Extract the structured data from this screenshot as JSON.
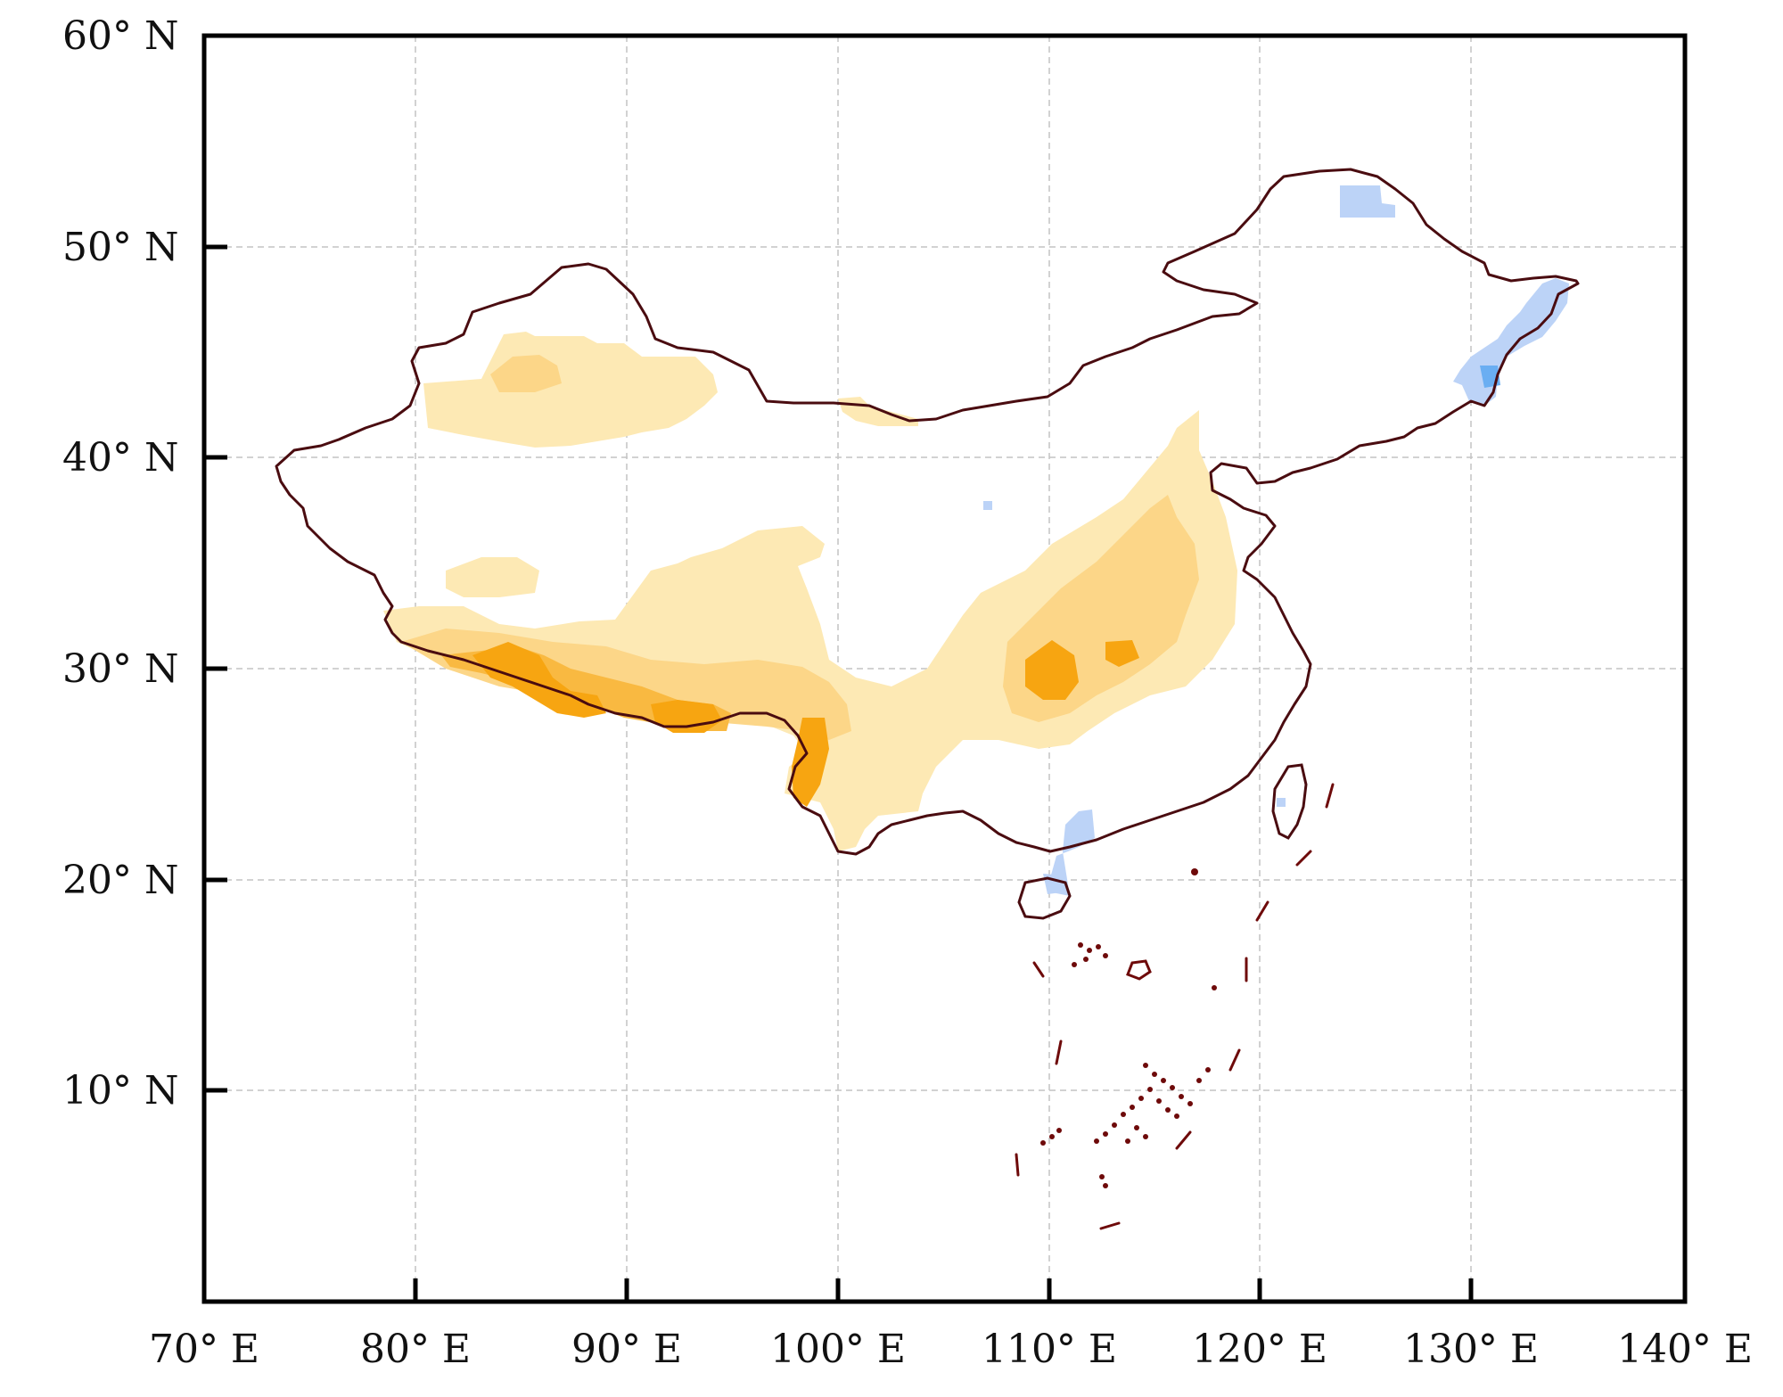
{
  "map": {
    "lat_range": [
      0,
      60
    ],
    "lon_range": [
      70,
      140
    ],
    "grid": true,
    "lat_ticks": [
      {
        "value": 60,
        "label": "60° N"
      },
      {
        "value": 50,
        "label": "50° N"
      },
      {
        "value": 40,
        "label": "40° N"
      },
      {
        "value": 30,
        "label": "30° N"
      },
      {
        "value": 20,
        "label": "20° N"
      },
      {
        "value": 10,
        "label": "10° N"
      }
    ],
    "lon_ticks": [
      {
        "value": 70,
        "label": "70° E"
      },
      {
        "value": 80,
        "label": "80° E"
      },
      {
        "value": 90,
        "label": "90° E"
      },
      {
        "value": 100,
        "label": "100° E"
      },
      {
        "value": 110,
        "label": "110° E"
      },
      {
        "value": 120,
        "label": "120° E"
      },
      {
        "value": 130,
        "label": "130° E"
      },
      {
        "value": 140,
        "label": "140° E"
      }
    ],
    "colors": {
      "border": "#4a0c10",
      "islands": "#6e0a0a",
      "light_yellow": "#fde9b4",
      "yellow": "#fcd688",
      "orange": "#f9b941",
      "deep_orange": "#f7a511",
      "light_blue": "#bcd3f7",
      "blue": "#6aaef2"
    }
  }
}
